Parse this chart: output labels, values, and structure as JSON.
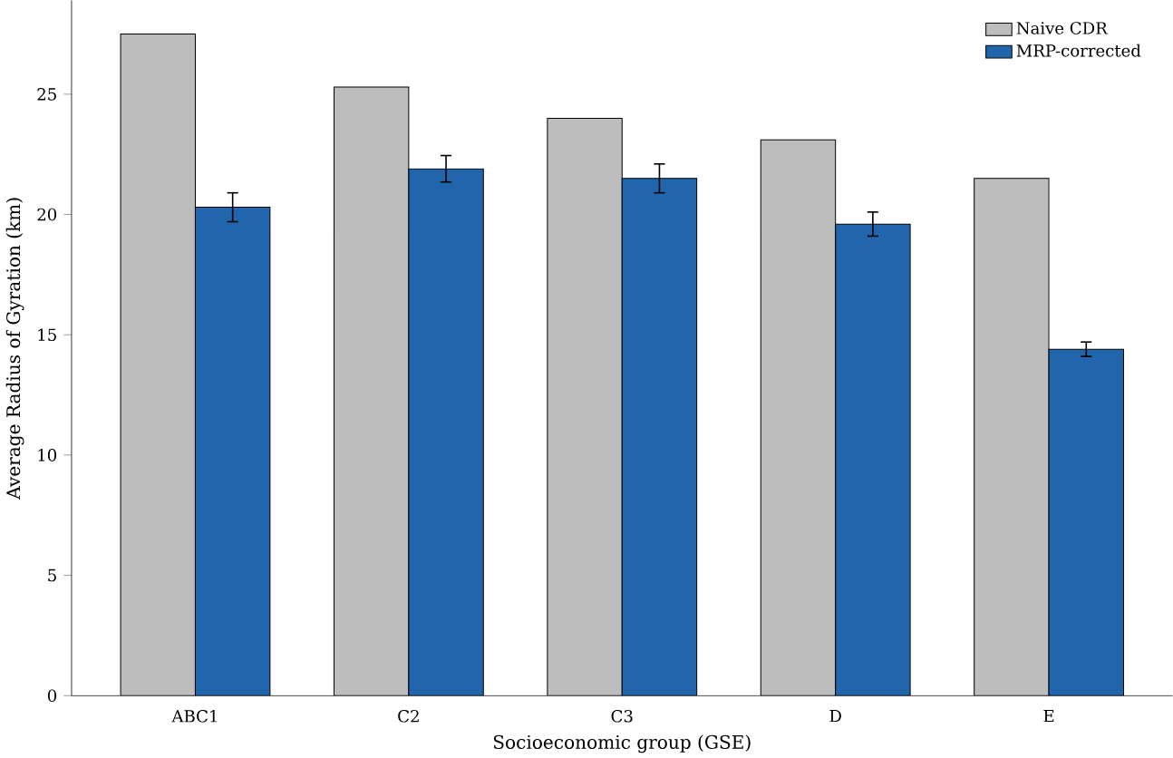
{
  "chart_data": {
    "type": "bar",
    "xlabel": "Socioeconomic group (GSE)",
    "ylabel": "Average Radius of Gyration (km)",
    "categories": [
      "ABC1",
      "C2",
      "C3",
      "D",
      "E"
    ],
    "series": [
      {
        "name": "Naive CDR",
        "color": "#bdbdbd",
        "values": [
          27.5,
          25.3,
          24.0,
          23.1,
          21.5
        ]
      },
      {
        "name": "MRP-corrected",
        "color": "#2166ac",
        "values": [
          20.3,
          21.9,
          21.5,
          19.6,
          14.4
        ],
        "errors": [
          0.6,
          0.55,
          0.6,
          0.5,
          0.3
        ]
      }
    ],
    "ylim": [
      0,
      28.9
    ],
    "yticks": [
      0,
      5,
      10,
      15,
      20,
      25
    ],
    "legend": "top right",
    "grid": false
  }
}
